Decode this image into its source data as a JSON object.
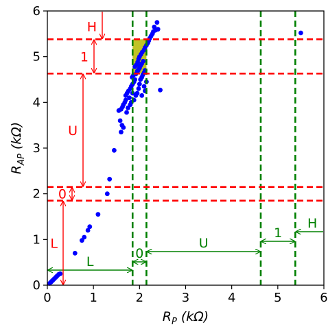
{
  "chart_data": {
    "type": "scatter",
    "xlabel": "R_P (kΩ)",
    "ylabel": "R_AP (kΩ)",
    "xlabel_parts": {
      "base": "R",
      "sub": "P",
      "unit": " (kΩ)"
    },
    "ylabel_parts": {
      "base": "R",
      "sub": "AP",
      "unit": " (kΩ)"
    },
    "xlim": [
      0,
      6
    ],
    "ylim": [
      0,
      6
    ],
    "xticks": [
      0,
      1,
      2,
      3,
      4,
      5,
      6
    ],
    "yticks": [
      0,
      1,
      2,
      3,
      4,
      5,
      6
    ],
    "xtick_labels": [
      "0",
      "1",
      "2",
      "3",
      "4",
      "5",
      "6"
    ],
    "ytick_labels": [
      "0",
      "1",
      "2",
      "3",
      "4",
      "5",
      "6"
    ],
    "grid": false,
    "point_color": "#0000ff",
    "x_threshold_color": "#008000",
    "y_threshold_color": "#ff0000",
    "highlight_color": "#b5b800",
    "x_thresholds": [
      1.85,
      2.15,
      4.63,
      5.38
    ],
    "y_thresholds": [
      1.85,
      2.15,
      4.63,
      5.38
    ],
    "highlight_region": {
      "x": [
        1.85,
        2.15
      ],
      "y": [
        4.63,
        5.38
      ]
    },
    "x_zones": [
      {
        "label": "L",
        "from": 0,
        "to": 1.85
      },
      {
        "label": "0",
        "from": 1.85,
        "to": 2.15
      },
      {
        "label": "U",
        "from": 2.15,
        "to": 4.63
      },
      {
        "label": "1",
        "from": 4.63,
        "to": 5.38
      },
      {
        "label": "H",
        "from": 5.38,
        "to": 6
      }
    ],
    "y_zones": [
      {
        "label": "L",
        "from": 0,
        "to": 1.85
      },
      {
        "label": "0",
        "from": 1.85,
        "to": 2.15
      },
      {
        "label": "U",
        "from": 2.15,
        "to": 4.63
      },
      {
        "label": "1",
        "from": 4.63,
        "to": 5.38
      },
      {
        "label": "H",
        "from": 5.38,
        "to": 6
      }
    ],
    "points": [
      [
        0.05,
        0.04
      ],
      [
        0.08,
        0.07
      ],
      [
        0.1,
        0.09
      ],
      [
        0.12,
        0.11
      ],
      [
        0.15,
        0.14
      ],
      [
        0.18,
        0.17
      ],
      [
        0.2,
        0.19
      ],
      [
        0.22,
        0.21
      ],
      [
        0.25,
        0.24
      ],
      [
        0.28,
        0.25
      ],
      [
        0.6,
        0.7
      ],
      [
        0.75,
        0.98
      ],
      [
        0.8,
        1.05
      ],
      [
        0.88,
        1.2
      ],
      [
        0.92,
        1.28
      ],
      [
        1.1,
        1.55
      ],
      [
        1.3,
        2.0
      ],
      [
        1.35,
        2.32
      ],
      [
        1.45,
        2.95
      ],
      [
        1.6,
        3.35
      ],
      [
        1.62,
        3.5
      ],
      [
        1.65,
        3.45
      ],
      [
        1.58,
        3.6
      ],
      [
        1.55,
        3.82
      ],
      [
        1.6,
        3.85
      ],
      [
        1.63,
        3.9
      ],
      [
        1.65,
        3.95
      ],
      [
        1.68,
        4.0
      ],
      [
        1.7,
        4.05
      ],
      [
        1.72,
        3.78
      ],
      [
        1.75,
        3.88
      ],
      [
        1.78,
        4.1
      ],
      [
        1.7,
        4.15
      ],
      [
        1.73,
        4.2
      ],
      [
        1.76,
        4.25
      ],
      [
        1.8,
        4.3
      ],
      [
        1.82,
        4.35
      ],
      [
        1.85,
        4.4
      ],
      [
        1.88,
        4.45
      ],
      [
        1.9,
        4.5
      ],
      [
        1.84,
        4.55
      ],
      [
        1.87,
        4.6
      ],
      [
        1.92,
        4.62
      ],
      [
        1.95,
        4.68
      ],
      [
        1.97,
        4.7
      ],
      [
        2.0,
        4.75
      ],
      [
        2.02,
        4.8
      ],
      [
        2.05,
        4.85
      ],
      [
        2.08,
        4.9
      ],
      [
        1.9,
        4.78
      ],
      [
        1.93,
        4.82
      ],
      [
        1.96,
        4.88
      ],
      [
        1.98,
        4.95
      ],
      [
        2.0,
        5.0
      ],
      [
        2.03,
        5.05
      ],
      [
        2.06,
        5.1
      ],
      [
        2.1,
        5.15
      ],
      [
        2.12,
        5.2
      ],
      [
        2.15,
        5.25
      ],
      [
        1.95,
        4.2
      ],
      [
        1.98,
        4.3
      ],
      [
        2.0,
        4.4
      ],
      [
        2.02,
        4.5
      ],
      [
        2.05,
        4.55
      ],
      [
        2.07,
        4.6
      ],
      [
        2.1,
        4.65
      ],
      [
        2.12,
        4.7
      ],
      [
        1.88,
        4.05
      ],
      [
        1.92,
        4.15
      ],
      [
        2.18,
        5.3
      ],
      [
        2.2,
        5.35
      ],
      [
        2.22,
        5.4
      ],
      [
        2.25,
        5.45
      ],
      [
        2.28,
        5.5
      ],
      [
        2.3,
        5.55
      ],
      [
        2.35,
        5.58
      ],
      [
        2.4,
        5.6
      ],
      [
        2.38,
        5.75
      ],
      [
        2.32,
        5.65
      ],
      [
        2.05,
        4.15
      ],
      [
        2.1,
        4.35
      ],
      [
        2.15,
        4.45
      ],
      [
        2.12,
        4.25
      ],
      [
        1.82,
        4.0
      ],
      [
        1.8,
        3.95
      ],
      [
        1.85,
        4.2
      ],
      [
        2.45,
        4.27
      ],
      [
        5.5,
        5.52
      ]
    ]
  }
}
